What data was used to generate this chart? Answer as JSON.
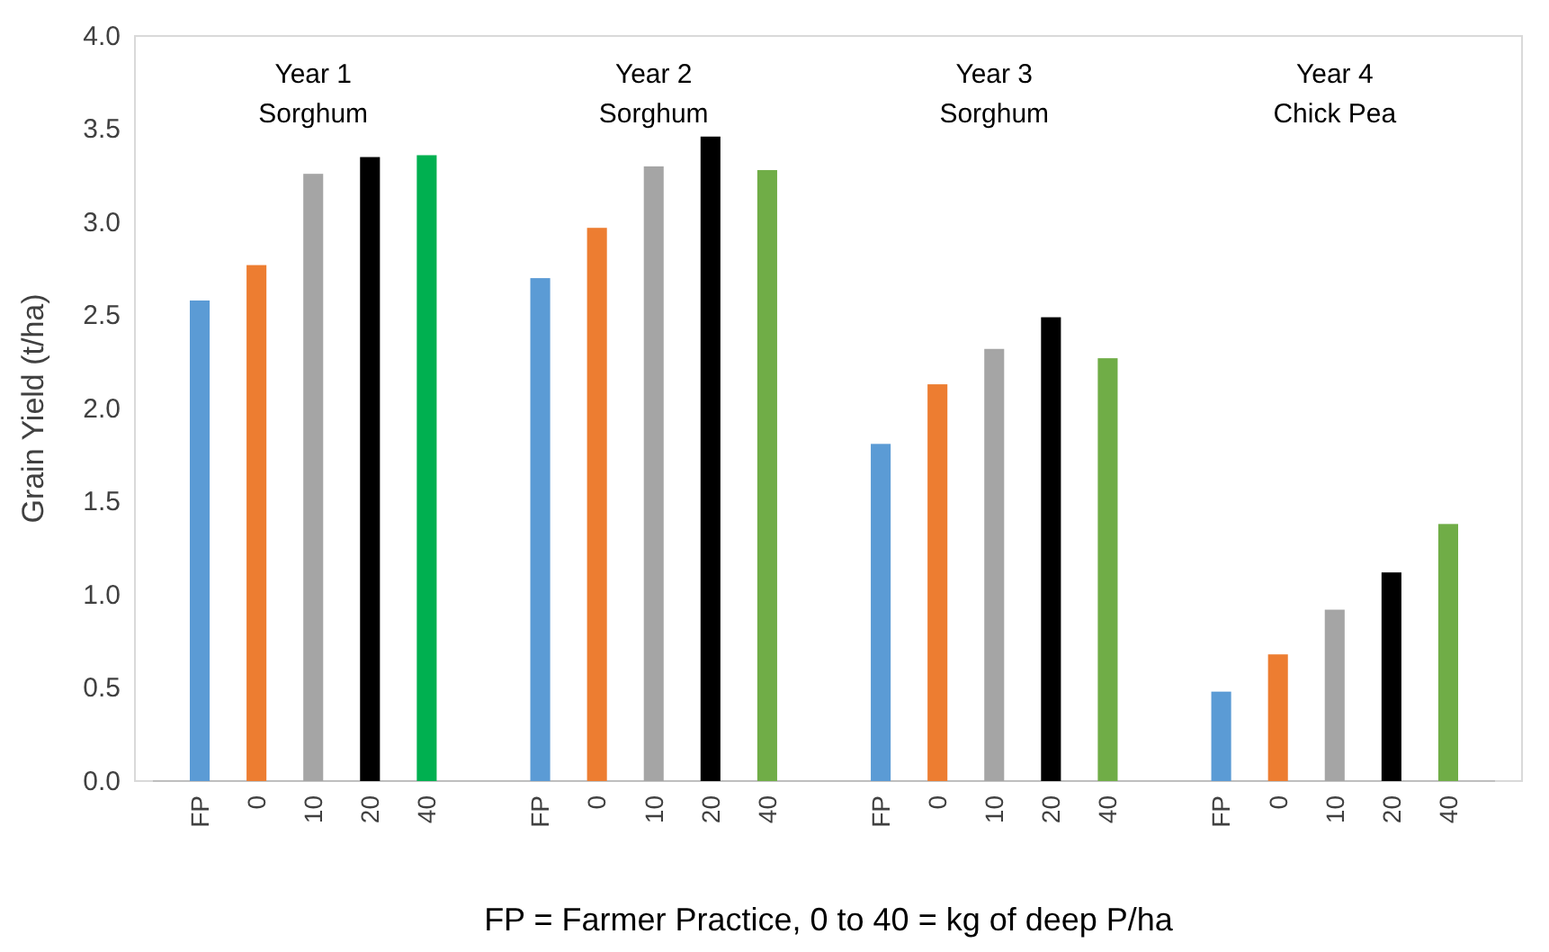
{
  "chart_data": {
    "type": "bar",
    "ylabel": "Grain Yield (t/ha)",
    "xlabel": "FP = Farmer Practice,  0 to 40 = kg of deep P/ha",
    "categories": [
      "FP",
      "0",
      "10",
      "20",
      "40",
      null,
      "FP",
      "0",
      "10",
      "20",
      "40",
      null,
      "FP",
      "0",
      "10",
      "20",
      "40",
      null,
      "FP",
      "0",
      "10",
      "20",
      "40"
    ],
    "values": [
      2.58,
      2.77,
      3.26,
      3.35,
      3.36,
      null,
      2.7,
      2.97,
      3.3,
      3.46,
      3.28,
      null,
      1.81,
      2.13,
      2.32,
      2.49,
      2.27,
      null,
      0.48,
      0.68,
      0.92,
      1.12,
      1.38
    ],
    "colors": [
      "#5b9bd5",
      "#ed7d31",
      "#a5a5a5",
      "#000000",
      "#00b050",
      null,
      "#5b9bd5",
      "#ed7d31",
      "#a5a5a5",
      "#000000",
      "#70ad47",
      null,
      "#5b9bd5",
      "#ed7d31",
      "#a5a5a5",
      "#000000",
      "#70ad47",
      null,
      "#5b9bd5",
      "#ed7d31",
      "#a5a5a5",
      "#000000",
      "#70ad47"
    ],
    "ylim": [
      0,
      4
    ],
    "yticks": [
      {
        "value": 0,
        "label": "0.0"
      },
      {
        "value": 0.5,
        "label": "0.5"
      },
      {
        "value": 1,
        "label": "1.0"
      },
      {
        "value": 1.5,
        "label": "1.5"
      },
      {
        "value": 2,
        "label": "2.0"
      },
      {
        "value": 2.5,
        "label": "2.5"
      },
      {
        "value": 3,
        "label": "3.0"
      },
      {
        "value": 3.5,
        "label": "3.5"
      },
      {
        "value": 4,
        "label": "4.0"
      }
    ],
    "annotations": [
      "Year 1",
      "Year 2",
      "Year 3",
      "Year 4",
      "Sorghum",
      "Sorghum",
      "Sorghum",
      "Chick Pea"
    ]
  }
}
